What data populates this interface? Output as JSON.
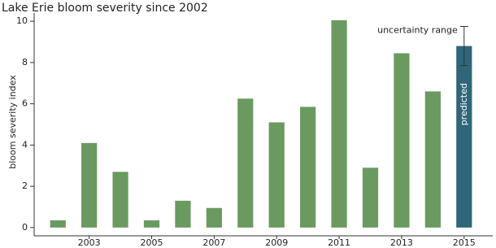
{
  "chart_data": {
    "type": "bar",
    "title": "Lake Erie bloom severity since 2002",
    "y_label": "bloom severity index",
    "categories": [
      null,
      "2003",
      null,
      "2005",
      null,
      "2007",
      null,
      "2009",
      null,
      "2011",
      null,
      "2013",
      null,
      "2015"
    ],
    "values": [
      0.35,
      4.1,
      2.7,
      0.35,
      1.3,
      0.95,
      6.25,
      5.1,
      5.85,
      10.05,
      2.9,
      8.45,
      6.6,
      8.8
    ],
    "errors": [
      null,
      null,
      null,
      null,
      null,
      null,
      null,
      null,
      null,
      null,
      null,
      null,
      null,
      0.95
    ],
    "colors": [
      "#6b9a60",
      "#6b9a60",
      "#6b9a60",
      "#6b9a60",
      "#6b9a60",
      "#6b9a60",
      "#6b9a60",
      "#6b9a60",
      "#6b9a60",
      "#6b9a60",
      "#6b9a60",
      "#6b9a60",
      "#6b9a60",
      "#2f6679"
    ],
    "bar_annotation": "predicted",
    "error_annotation": "uncertainty range",
    "ylim": [
      -0.4,
      10.4
    ],
    "yticks": [
      0,
      2,
      4,
      6,
      8,
      10
    ],
    "grid": false
  }
}
